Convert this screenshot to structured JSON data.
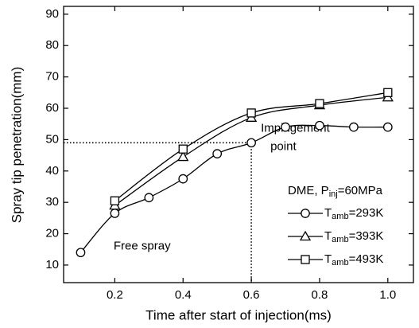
{
  "chart_data": {
    "type": "line",
    "xlabel": "Time after start of injection(ms)",
    "ylabel": "Spray tip penetration(mm)",
    "xlim": [
      0.05,
      1.075
    ],
    "ylim": [
      4.4,
      92.5
    ],
    "xticks": [
      0.2,
      0.4,
      0.6,
      0.8,
      {
        "value": 1,
        "label": "1.0"
      }
    ],
    "yticks": [
      10,
      20,
      30,
      40,
      50,
      60,
      70,
      80,
      90
    ],
    "legend_title": [
      "DME, P",
      "inj",
      "=60MPa"
    ],
    "annotations": [
      {
        "text": [
          "Impingement",
          "point"
        ],
        "x": 0.6,
        "y": 49
      },
      {
        "text": [
          "Free spray"
        ],
        "x": 0.28,
        "y": 16
      }
    ],
    "series": [
      {
        "name": [
          "T",
          "amb",
          "=293K"
        ],
        "color": "#000000",
        "marker": "circle",
        "x": [
          0.1,
          0.2,
          0.3,
          0.4,
          0.5,
          0.6,
          0.7,
          0.8,
          0.9,
          1.0
        ],
        "values": [
          14,
          26.5,
          31.5,
          37.5,
          45.5,
          49,
          54,
          54.5,
          54,
          54
        ]
      },
      {
        "name": [
          "T",
          "amb",
          "=393K"
        ],
        "color": "#000000",
        "marker": "triangle",
        "x": [
          0.2,
          0.4,
          0.6,
          0.8,
          1.0
        ],
        "values": [
          29,
          44.5,
          57,
          61,
          63.5
        ]
      },
      {
        "name": [
          "T",
          "amb",
          "=493K"
        ],
        "color": "#000000",
        "marker": "square",
        "x": [
          0.2,
          0.4,
          0.6,
          0.8,
          1.0
        ],
        "values": [
          30.5,
          47,
          58.5,
          61.5,
          65
        ]
      }
    ]
  }
}
